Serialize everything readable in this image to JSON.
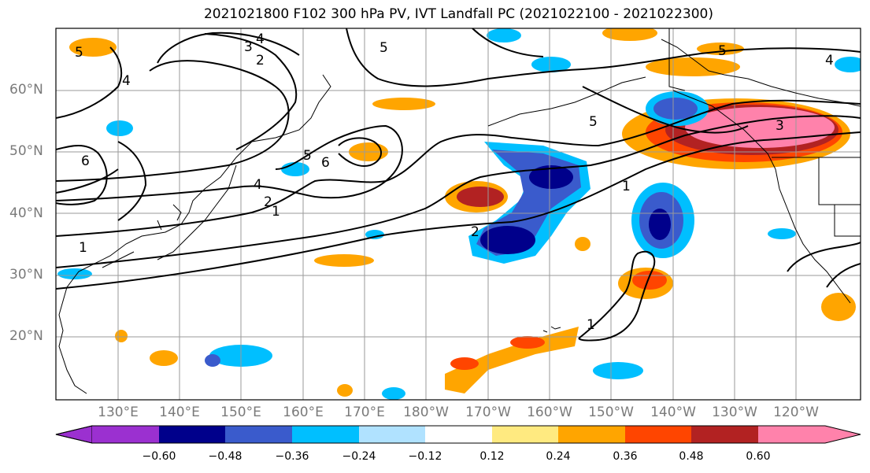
{
  "title": "2021021800 F102 300 hPa PV, IVT Landfall PC (2021022100 - 2021022300)",
  "lat_labels": [
    "60°N",
    "50°N",
    "40°N",
    "30°N",
    "20°N"
  ],
  "lon_labels": [
    "130°E",
    "140°E",
    "150°E",
    "160°E",
    "170°E",
    "180°W",
    "170°W",
    "160°W",
    "150°W",
    "140°W",
    "130°W",
    "120°W"
  ],
  "colorbar": {
    "ticks": [
      "−0.60",
      "−0.48",
      "−0.36",
      "−0.24",
      "−0.12",
      "0.12",
      "0.24",
      "0.36",
      "0.48",
      "0.60"
    ],
    "colors": [
      "#9b30d0",
      "#00008b",
      "#3a5bcc",
      "#00bfff",
      "#b0e2ff",
      "#ffffff",
      "#ffea80",
      "#ffa500",
      "#ff4500",
      "#b22222",
      "#ff82ab"
    ]
  },
  "contour_labels": [
    "1",
    "2",
    "3",
    "4",
    "5",
    "6"
  ]
}
